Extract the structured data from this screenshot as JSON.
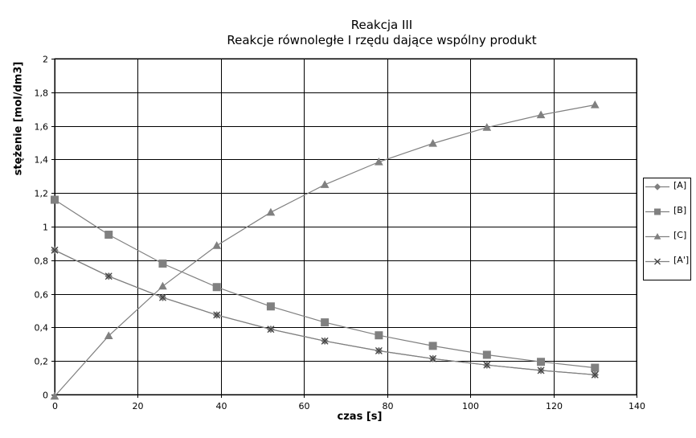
{
  "chart_data": {
    "type": "line",
    "title": "Reakcja III",
    "subtitle": "Reakcje równoległe I rzędu dające wspólny produkt",
    "xlabel": "czas [s]",
    "ylabel": "stężenie [mol/dm3]",
    "xlim": [
      0,
      140
    ],
    "ylim": [
      0,
      2
    ],
    "x_ticks": [
      "0",
      "20",
      "40",
      "60",
      "80",
      "100",
      "120",
      "140"
    ],
    "y_ticks": [
      "0",
      "0,2",
      "0,4",
      "0,6",
      "0,8",
      "1",
      "1,2",
      "1,4",
      "1,6",
      "1,8",
      "2"
    ],
    "grid": true,
    "legend_position": "right",
    "x": [
      0,
      13,
      26,
      39,
      52,
      65,
      78,
      91,
      104,
      117,
      130
    ],
    "series": [
      {
        "name": "[A]",
        "marker": "diamond",
        "values": [
          0.86,
          0.705,
          0.578,
          0.474,
          0.389,
          0.319,
          0.261,
          0.214,
          0.176,
          0.144,
          0.118
        ]
      },
      {
        "name": "[B]",
        "marker": "square",
        "values": [
          1.16,
          0.952,
          0.78,
          0.64,
          0.525,
          0.43,
          0.353,
          0.29,
          0.237,
          0.195,
          0.16
        ]
      },
      {
        "name": "[C]",
        "marker": "triangle",
        "values": [
          -0.01,
          0.35,
          0.645,
          0.887,
          1.085,
          1.25,
          1.385,
          1.495,
          1.59,
          1.665,
          1.725
        ]
      },
      {
        "name": "[A']",
        "marker": "cross",
        "values": [
          0.86,
          0.705,
          0.578,
          0.474,
          0.389,
          0.319,
          0.261,
          0.214,
          0.176,
          0.144,
          0.118
        ]
      }
    ],
    "colors": {
      "series": "#808080",
      "grid": "#000000",
      "background": "#ffffff"
    }
  }
}
